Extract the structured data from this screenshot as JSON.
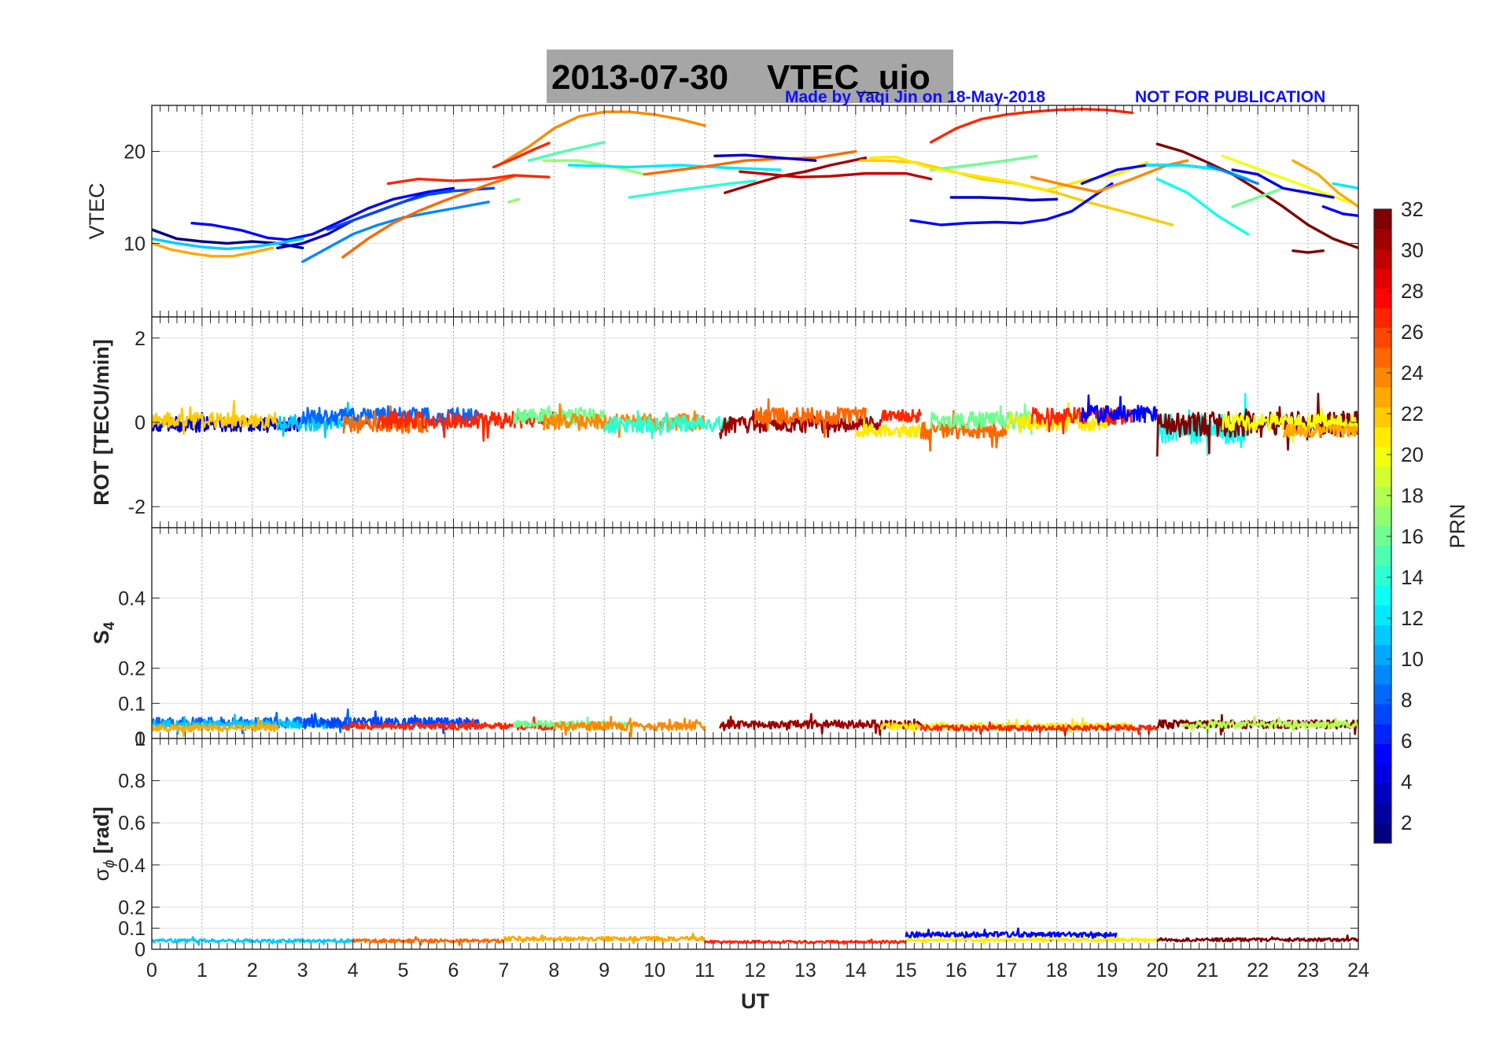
{
  "title": {
    "date": "2013-07-30",
    "label": "VTEC_uio"
  },
  "credit": {
    "author": "Made by Yaqi Jin on 18-May-2018",
    "notice": "NOT FOR PUBLICATION"
  },
  "colors": {
    "credit": "#1010ff",
    "title_bg": "#a6a6a6",
    "grid": "#bdbdbd",
    "colormap": "jet"
  },
  "chart_data": [
    {
      "type": "line",
      "panel": "VTEC",
      "ylabel": "VTEC",
      "xlim": [
        0,
        24
      ],
      "ylim": [
        2,
        25
      ],
      "yticks": [
        20,
        10
      ],
      "series": [
        {
          "prn": 1,
          "x": [
            0,
            0.5,
            1,
            1.5,
            2,
            2.5,
            3
          ],
          "y": [
            11.5,
            10.5,
            10.2,
            10,
            10.2,
            10,
            9.5
          ]
        },
        {
          "prn": 3,
          "x": [
            2.5,
            3,
            3.5,
            4,
            4.5,
            5,
            5.5
          ],
          "y": [
            9.5,
            10,
            11,
            12.5,
            13.5,
            14.5,
            15.5
          ]
        },
        {
          "prn": 5,
          "x": [
            0.8,
            1.2,
            1.8,
            2.3,
            2.7,
            3.2,
            3.8,
            4.3,
            4.8,
            5.5,
            6
          ],
          "y": [
            12.2,
            12,
            11.4,
            10.6,
            10.4,
            11,
            12.5,
            13.8,
            14.8,
            15.6,
            16
          ]
        },
        {
          "prn": 7,
          "x": [
            3.5,
            4,
            4.5,
            5,
            5.5,
            6,
            6.8
          ],
          "y": [
            11.5,
            12.5,
            13.5,
            14.5,
            15.3,
            15.7,
            16
          ]
        },
        {
          "prn": 9,
          "x": [
            3,
            3.5,
            4,
            4.5,
            5,
            5.5,
            6,
            6.7
          ],
          "y": [
            8,
            9.5,
            11,
            12,
            12.8,
            13.3,
            13.8,
            14.5
          ]
        },
        {
          "prn": 11,
          "x": [
            0,
            0.5,
            1,
            1.5,
            2,
            2.5,
            3
          ],
          "y": [
            10.5,
            10,
            9.6,
            9.4,
            9.6,
            10,
            10.5
          ]
        },
        {
          "prn": 23,
          "x": [
            0,
            0.4,
            0.8,
            1.2,
            1.6,
            2,
            2.4
          ],
          "y": [
            10,
            9.3,
            8.9,
            8.6,
            8.6,
            9,
            9.5
          ]
        },
        {
          "prn": 25,
          "x": [
            3.8,
            4.3,
            4.8,
            5.3,
            5.8,
            6.3,
            6.8,
            7.2
          ],
          "y": [
            8.5,
            10.5,
            12.2,
            13.5,
            14.6,
            15.6,
            16.6,
            17.3
          ]
        },
        {
          "prn": 27,
          "x": [
            4.7,
            5.3,
            6,
            6.7,
            7.2,
            7.9
          ],
          "y": [
            16.5,
            17,
            16.8,
            17,
            17.4,
            17.2
          ]
        },
        {
          "prn": 24,
          "x": [
            6.9,
            7.5,
            8,
            8.5,
            9,
            9.5,
            10,
            10.5,
            11
          ],
          "y": [
            18.5,
            20.5,
            22.5,
            23.8,
            24.3,
            24.3,
            24,
            23.5,
            22.8
          ]
        },
        {
          "prn": 27,
          "x": [
            6.8,
            7.2,
            7.6,
            7.9
          ],
          "y": [
            18.3,
            19.2,
            20.2,
            20.9
          ]
        },
        {
          "prn": 15,
          "x": [
            7.5,
            8.2,
            9
          ],
          "y": [
            19,
            20,
            21
          ]
        },
        {
          "prn": 17,
          "x": [
            7.8,
            8.5,
            9.3,
            9.8
          ],
          "y": [
            19,
            19,
            18.2,
            17.5
          ]
        },
        {
          "prn": 17,
          "x": [
            7.1,
            7.3
          ],
          "y": [
            14.5,
            14.8
          ]
        },
        {
          "prn": 12,
          "x": [
            8.3,
            9.5,
            10.5,
            11.5,
            12.5
          ],
          "y": [
            18.5,
            18.3,
            18.5,
            18.2,
            18
          ]
        },
        {
          "prn": 25,
          "x": [
            9.8,
            10.5,
            11.2,
            11.8,
            12.5,
            13.2,
            14
          ],
          "y": [
            17.5,
            18,
            18.5,
            19,
            19.2,
            19.3,
            20
          ]
        },
        {
          "prn": 14,
          "x": [
            9.5,
            10.5,
            11.5,
            12
          ],
          "y": [
            15,
            15.8,
            16.5,
            16.8
          ]
        },
        {
          "prn": 3,
          "x": [
            11.2,
            11.8,
            12.5,
            13.2
          ],
          "y": [
            19.5,
            19.6,
            19.3,
            19
          ]
        },
        {
          "prn": 31,
          "x": [
            11.4,
            12,
            12.5,
            13,
            13.5,
            14.2
          ],
          "y": [
            15.5,
            16.5,
            17.3,
            17.8,
            18.5,
            19.3
          ]
        },
        {
          "prn": 30,
          "x": [
            11.7,
            12.3,
            12.9,
            13.5,
            14.2,
            15,
            15.5
          ],
          "y": [
            17.8,
            17.5,
            17.2,
            17.3,
            17.6,
            17.6,
            17
          ]
        },
        {
          "prn": 22,
          "x": [
            14.1,
            14.6,
            15.2,
            15.8,
            16.5,
            17.2,
            18,
            18.6,
            19.3,
            20.3
          ],
          "y": [
            19,
            19,
            18.8,
            18,
            17,
            16.5,
            15.5,
            14.5,
            13.5,
            12
          ]
        },
        {
          "prn": 27,
          "x": [
            15.5,
            16,
            16.5,
            17,
            17.5,
            18,
            18.5,
            19,
            19.5
          ],
          "y": [
            21,
            22.5,
            23.5,
            24,
            24.3,
            24.5,
            24.6,
            24.5,
            24.2
          ]
        },
        {
          "prn": 5,
          "x": [
            15.1,
            15.7,
            16.2,
            16.8,
            17.3,
            17.8,
            18.3,
            18.7,
            19.1
          ],
          "y": [
            12.5,
            12,
            12.2,
            12.3,
            12.2,
            12.6,
            13.5,
            15,
            16.5
          ]
        },
        {
          "prn": 3,
          "x": [
            15.9,
            16.5,
            17,
            17.5,
            18
          ],
          "y": [
            15,
            15,
            14.9,
            14.7,
            14.8
          ]
        },
        {
          "prn": 16,
          "x": [
            15.5,
            16.3,
            17,
            17.6
          ],
          "y": [
            18,
            18.5,
            19,
            19.5
          ]
        },
        {
          "prn": 21,
          "x": [
            14.3,
            14.8,
            15.5,
            16.2,
            17,
            17.8,
            18.5,
            19.2,
            19.8
          ],
          "y": [
            19.3,
            19.4,
            18.2,
            17.5,
            16.8,
            15.8,
            16.8,
            17.5,
            18.8
          ]
        },
        {
          "prn": 24,
          "x": [
            17.5,
            18.2,
            18.8,
            19.5,
            20.2,
            20.6
          ],
          "y": [
            17.2,
            16.3,
            15.6,
            17,
            18.5,
            19
          ]
        },
        {
          "prn": 5,
          "x": [
            18.5,
            19.2,
            19.8,
            20.5,
            21.3
          ],
          "y": [
            16.5,
            18,
            18.5,
            18.5,
            18
          ]
        },
        {
          "prn": 12,
          "x": [
            19.8,
            20.5,
            21.3,
            21.8
          ],
          "y": [
            18.5,
            18.5,
            18,
            17
          ]
        },
        {
          "prn": 13,
          "x": [
            20,
            20.6,
            21.2,
            21.8
          ],
          "y": [
            17,
            15.5,
            13,
            11
          ]
        },
        {
          "prn": 32,
          "x": [
            20,
            20.5,
            21,
            21.5,
            22,
            22.5,
            23,
            23.5,
            24
          ],
          "y": [
            20.8,
            20,
            18.8,
            17.5,
            15.8,
            14,
            12,
            10.5,
            9.5
          ]
        },
        {
          "prn": 32,
          "x": [
            22.7,
            23,
            23.3
          ],
          "y": [
            9.2,
            9,
            9.2
          ]
        },
        {
          "prn": 20,
          "x": [
            21.3,
            21.8,
            22.3,
            22.8,
            23.3,
            23.8
          ],
          "y": [
            19.5,
            18.5,
            17.5,
            16.5,
            15.5,
            14.5
          ]
        },
        {
          "prn": 16,
          "x": [
            21.5,
            22,
            22.5
          ],
          "y": [
            14,
            15,
            16
          ]
        },
        {
          "prn": 4,
          "x": [
            21.5,
            22,
            22.5,
            23,
            23.5
          ],
          "y": [
            18,
            17.5,
            16,
            15.5,
            15
          ]
        },
        {
          "prn": 9,
          "x": [
            21,
            21.5,
            22
          ],
          "y": [
            18.5,
            17.5,
            16.5
          ]
        },
        {
          "prn": 23,
          "x": [
            22.7,
            23.2,
            23.6,
            24
          ],
          "y": [
            19,
            17.5,
            15.5,
            14
          ]
        },
        {
          "prn": 5,
          "x": [
            23.3,
            23.7,
            24
          ],
          "y": [
            14,
            13.2,
            13
          ]
        },
        {
          "prn": 12,
          "x": [
            23.5,
            24
          ],
          "y": [
            16.5,
            16
          ]
        }
      ]
    },
    {
      "type": "line",
      "panel": "ROT",
      "ylabel": "ROT [TECU/min]",
      "xlim": [
        0,
        24
      ],
      "ylim": [
        -2.5,
        2.5
      ],
      "yticks": [
        2,
        0,
        -2
      ],
      "segments": [
        {
          "prn": 3,
          "x0": 0,
          "x1": 3,
          "level": -0.05,
          "amp": 0.18
        },
        {
          "prn": 22,
          "x0": 0,
          "x1": 2.5,
          "level": 0.05,
          "amp": 0.18
        },
        {
          "prn": 11,
          "x0": 2.5,
          "x1": 4,
          "level": 0,
          "amp": 0.2
        },
        {
          "prn": 8,
          "x0": 3,
          "x1": 6.5,
          "level": 0.15,
          "amp": 0.2
        },
        {
          "prn": 25,
          "x0": 3.8,
          "x1": 5.5,
          "level": -0.05,
          "amp": 0.2
        },
        {
          "prn": 27,
          "x0": 4.5,
          "x1": 8,
          "level": 0.05,
          "amp": 0.2
        },
        {
          "prn": 16,
          "x0": 7.2,
          "x1": 9,
          "level": 0.15,
          "amp": 0.2
        },
        {
          "prn": 24,
          "x0": 7.8,
          "x1": 11,
          "level": 0,
          "amp": 0.2
        },
        {
          "prn": 14,
          "x0": 9,
          "x1": 11.5,
          "level": -0.05,
          "amp": 0.2
        },
        {
          "prn": 31,
          "x0": 11.3,
          "x1": 14.5,
          "level": -0.05,
          "amp": 0.2
        },
        {
          "prn": 25,
          "x0": 12,
          "x1": 14.2,
          "level": 0.15,
          "amp": 0.2
        },
        {
          "prn": 27,
          "x0": 14.5,
          "x1": 15.3,
          "level": 0.15,
          "amp": 0.15
        },
        {
          "prn": 21,
          "x0": 14,
          "x1": 15.5,
          "level": -0.2,
          "amp": 0.15
        },
        {
          "prn": 25,
          "x0": 15.3,
          "x1": 17,
          "level": -0.2,
          "amp": 0.2
        },
        {
          "prn": 16,
          "x0": 15.5,
          "x1": 17.5,
          "level": 0.05,
          "amp": 0.2
        },
        {
          "prn": 21,
          "x0": 17,
          "x1": 19,
          "level": 0,
          "amp": 0.2
        },
        {
          "prn": 27,
          "x0": 17.5,
          "x1": 19.5,
          "level": 0.15,
          "amp": 0.2
        },
        {
          "prn": 5,
          "x0": 18.5,
          "x1": 20,
          "level": 0.2,
          "amp": 0.2
        },
        {
          "prn": 13,
          "x0": 20,
          "x1": 21.8,
          "level": -0.15,
          "amp": 0.35
        },
        {
          "prn": 32,
          "x0": 20,
          "x1": 24,
          "level": -0.05,
          "amp": 0.3
        },
        {
          "prn": 20,
          "x0": 21.3,
          "x1": 24,
          "level": 0,
          "amp": 0.2
        },
        {
          "prn": 23,
          "x0": 22.5,
          "x1": 24,
          "level": -0.2,
          "amp": 0.15
        }
      ]
    },
    {
      "type": "line",
      "panel": "S4",
      "ylabel": "S4",
      "xlim": [
        0,
        24
      ],
      "ylim": [
        0,
        0.6
      ],
      "yticks": [
        0.4,
        0.2,
        0.1,
        0
      ],
      "segments": [
        {
          "prn": 8,
          "x0": 0,
          "x1": 4,
          "level": 0.045,
          "amp": 0.015
        },
        {
          "prn": 11,
          "x0": 0,
          "x1": 3.5,
          "level": 0.04,
          "amp": 0.012
        },
        {
          "prn": 23,
          "x0": 0,
          "x1": 2.5,
          "level": 0.03,
          "amp": 0.01
        },
        {
          "prn": 7,
          "x0": 3,
          "x1": 6.5,
          "level": 0.045,
          "amp": 0.015
        },
        {
          "prn": 27,
          "x0": 3.8,
          "x1": 8,
          "level": 0.035,
          "amp": 0.01
        },
        {
          "prn": 16,
          "x0": 7.2,
          "x1": 9.5,
          "level": 0.04,
          "amp": 0.01
        },
        {
          "prn": 24,
          "x0": 8,
          "x1": 11,
          "level": 0.035,
          "amp": 0.012
        },
        {
          "prn": 31,
          "x0": 11.3,
          "x1": 15.3,
          "level": 0.04,
          "amp": 0.012
        },
        {
          "prn": 21,
          "x0": 14.5,
          "x1": 19.5,
          "level": 0.035,
          "amp": 0.01
        },
        {
          "prn": 27,
          "x0": 15.3,
          "x1": 20,
          "level": 0.03,
          "amp": 0.008
        },
        {
          "prn": 32,
          "x0": 20,
          "x1": 24,
          "level": 0.04,
          "amp": 0.012
        },
        {
          "prn": 18,
          "x0": 20.5,
          "x1": 24,
          "level": 0.04,
          "amp": 0.01
        }
      ]
    },
    {
      "type": "line",
      "panel": "sigma_phi",
      "ylabel": "σϕ [rad]",
      "xlim": [
        0,
        24
      ],
      "xlabel": "UT",
      "xticks": [
        0,
        1,
        2,
        3,
        4,
        5,
        6,
        7,
        8,
        9,
        10,
        11,
        12,
        13,
        14,
        15,
        16,
        17,
        18,
        19,
        20,
        21,
        22,
        23,
        24
      ],
      "ylim": [
        0,
        1
      ],
      "yticks": [
        1,
        0.8,
        0.6,
        0.4,
        0.2,
        0.1,
        0
      ],
      "segments": [
        {
          "prn": 11,
          "x0": 0,
          "x1": 4,
          "level": 0.04,
          "amp": 0.008
        },
        {
          "prn": 25,
          "x0": 4,
          "x1": 7,
          "level": 0.04,
          "amp": 0.008
        },
        {
          "prn": 23,
          "x0": 7,
          "x1": 11,
          "level": 0.05,
          "amp": 0.01
        },
        {
          "prn": 27,
          "x0": 11,
          "x1": 15,
          "level": 0.035,
          "amp": 0.006
        },
        {
          "prn": 5,
          "x0": 15,
          "x1": 19.2,
          "level": 0.07,
          "amp": 0.012
        },
        {
          "prn": 21,
          "x0": 15,
          "x1": 20,
          "level": 0.045,
          "amp": 0.008
        },
        {
          "prn": 32,
          "x0": 20,
          "x1": 24,
          "level": 0.045,
          "amp": 0.008
        }
      ]
    },
    {
      "type": "heatmap",
      "panel": "colorbar",
      "label": "PRN",
      "range": [
        1,
        32
      ],
      "ticks": [
        32,
        30,
        28,
        26,
        24,
        22,
        20,
        18,
        16,
        14,
        12,
        10,
        8,
        6,
        4,
        2
      ]
    }
  ]
}
